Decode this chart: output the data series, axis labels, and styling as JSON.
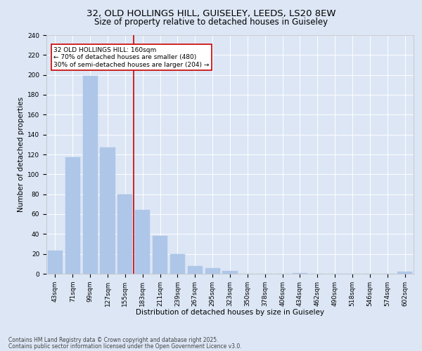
{
  "title1": "32, OLD HOLLINGS HILL, GUISELEY, LEEDS, LS20 8EW",
  "title2": "Size of property relative to detached houses in Guiseley",
  "xlabel": "Distribution of detached houses by size in Guiseley",
  "ylabel": "Number of detached properties",
  "categories": [
    "43sqm",
    "71sqm",
    "99sqm",
    "127sqm",
    "155sqm",
    "183sqm",
    "211sqm",
    "239sqm",
    "267sqm",
    "295sqm",
    "323sqm",
    "350sqm",
    "378sqm",
    "406sqm",
    "434sqm",
    "462sqm",
    "490sqm",
    "518sqm",
    "546sqm",
    "574sqm",
    "602sqm"
  ],
  "values": [
    23,
    117,
    199,
    127,
    80,
    64,
    38,
    20,
    8,
    6,
    3,
    0,
    0,
    0,
    1,
    0,
    0,
    0,
    0,
    0,
    2
  ],
  "bar_color": "#aec6e8",
  "bar_edge_color": "#aec6e8",
  "vline_x": 4.5,
  "vline_color": "#cc0000",
  "annotation_text": "32 OLD HOLLINGS HILL: 160sqm\n← 70% of detached houses are smaller (480)\n30% of semi-detached houses are larger (204) →",
  "annotation_box_color": "#ffffff",
  "annotation_box_edge": "#cc0000",
  "ylim": [
    0,
    240
  ],
  "yticks": [
    0,
    20,
    40,
    60,
    80,
    100,
    120,
    140,
    160,
    180,
    200,
    220,
    240
  ],
  "background_color": "#dce6f5",
  "plot_bg_color": "#dce6f5",
  "footer1": "Contains HM Land Registry data © Crown copyright and database right 2025.",
  "footer2": "Contains public sector information licensed under the Open Government Licence v3.0.",
  "title_fontsize": 9.5,
  "subtitle_fontsize": 8.5,
  "axis_label_fontsize": 7.5,
  "tick_fontsize": 6.5,
  "annotation_fontsize": 6.5,
  "footer_fontsize": 5.5
}
